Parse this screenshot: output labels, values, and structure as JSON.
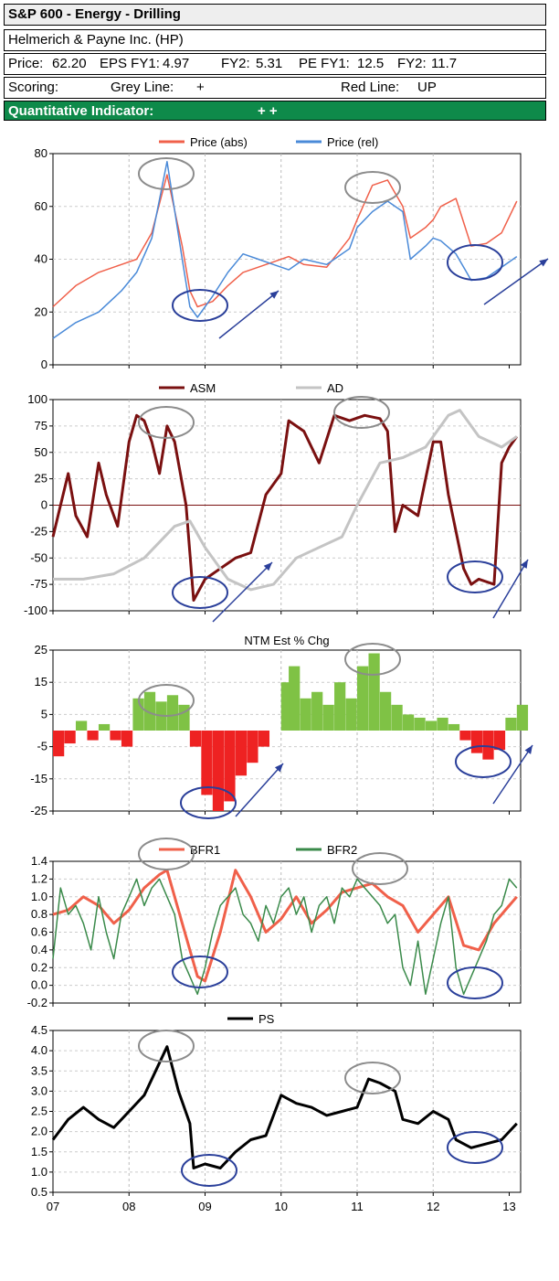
{
  "header": {
    "title": "S&P 600 - Energy - Drilling",
    "company": "Helmerich & Payne Inc. (HP)",
    "price_label": "Price:",
    "price": "62.20",
    "eps_label": "EPS FY1:",
    "eps_fy1": "4.97",
    "eps_fy2_label": "FY2:",
    "eps_fy2": "5.31",
    "pe_label": "PE FY1:",
    "pe_fy1": "12.5",
    "pe_fy2_label": "FY2:",
    "pe_fy2": "11.7",
    "scoring_label": "Scoring:",
    "grey_line_label": "Grey Line:",
    "grey_line_value": "+",
    "red_line_label": "Red Line:",
    "red_line_value": "UP",
    "quant_label": "Quantitative Indicator:",
    "quant_value": "+ +"
  },
  "colors": {
    "red": "#f0604a",
    "blue": "#4a8ad8",
    "darkred": "#7a1010",
    "grey": "#c4c4c4",
    "green": "#7fc245",
    "barred": "#ee2222",
    "bfr2": "#3a8a4a",
    "ps": "#000000",
    "annot_grey": "#8c8c8c",
    "annot_blue": "#2a3f9a",
    "header_green": "#0e8a4a"
  },
  "chart_data": [
    {
      "type": "line",
      "legend": [
        "Price (abs)",
        "Price (rel)"
      ],
      "ylim": [
        0,
        80
      ],
      "yticks": [
        "0",
        "20",
        "40",
        "60",
        "80"
      ],
      "xticks": [
        "07",
        "08",
        "09",
        "10",
        "11",
        "12",
        "13"
      ],
      "series": [
        {
          "name": "Price (abs)",
          "color": "red",
          "x": [
            2007.0,
            2007.3,
            2007.6,
            2007.9,
            2008.1,
            2008.3,
            2008.5,
            2008.7,
            2008.8,
            2008.9,
            2009.1,
            2009.3,
            2009.5,
            2009.7,
            2009.9,
            2010.1,
            2010.3,
            2010.6,
            2010.9,
            2011.0,
            2011.2,
            2011.4,
            2011.6,
            2011.7,
            2011.9,
            2012.0,
            2012.1,
            2012.3,
            2012.5,
            2012.7,
            2012.9,
            2013.1
          ],
          "y": [
            22,
            30,
            35,
            38,
            40,
            50,
            72,
            45,
            28,
            22,
            24,
            30,
            35,
            37,
            39,
            41,
            38,
            37,
            48,
            55,
            68,
            70,
            60,
            48,
            52,
            55,
            60,
            63,
            45,
            46,
            50,
            62
          ]
        },
        {
          "name": "Price (rel)",
          "color": "blue",
          "x": [
            2007.0,
            2007.3,
            2007.6,
            2007.9,
            2008.1,
            2008.3,
            2008.5,
            2008.7,
            2008.8,
            2008.9,
            2009.1,
            2009.3,
            2009.5,
            2009.7,
            2009.9,
            2010.1,
            2010.3,
            2010.6,
            2010.9,
            2011.0,
            2011.2,
            2011.4,
            2011.6,
            2011.7,
            2011.9,
            2012.0,
            2012.1,
            2012.3,
            2012.5,
            2012.7,
            2012.9,
            2013.1
          ],
          "y": [
            10,
            16,
            20,
            28,
            35,
            48,
            77,
            40,
            22,
            18,
            26,
            35,
            42,
            40,
            38,
            36,
            40,
            38,
            44,
            52,
            58,
            62,
            58,
            40,
            45,
            48,
            47,
            42,
            32,
            33,
            37,
            41
          ]
        }
      ]
    },
    {
      "type": "line",
      "legend": [
        "ASM",
        "AD"
      ],
      "ylim": [
        -100,
        100
      ],
      "yticks": [
        "-100",
        "-75",
        "-50",
        "-25",
        "0",
        "25",
        "50",
        "75",
        "100"
      ],
      "series": [
        {
          "name": "ASM",
          "color": "darkred",
          "x": [
            2007.0,
            2007.1,
            2007.2,
            2007.3,
            2007.45,
            2007.6,
            2007.7,
            2007.85,
            2008.0,
            2008.1,
            2008.2,
            2008.3,
            2008.4,
            2008.5,
            2008.6,
            2008.75,
            2008.85,
            2009.0,
            2009.2,
            2009.4,
            2009.6,
            2009.8,
            2010.0,
            2010.1,
            2010.3,
            2010.5,
            2010.7,
            2010.9,
            2011.1,
            2011.3,
            2011.4,
            2011.5,
            2011.6,
            2011.8,
            2012.0,
            2012.1,
            2012.2,
            2012.4,
            2012.5,
            2012.6,
            2012.8,
            2012.9,
            2013.0,
            2013.1
          ],
          "y": [
            -30,
            0,
            30,
            -10,
            -30,
            40,
            10,
            -20,
            60,
            85,
            80,
            60,
            30,
            75,
            60,
            0,
            -90,
            -70,
            -60,
            -50,
            -45,
            10,
            30,
            80,
            70,
            40,
            85,
            80,
            85,
            82,
            70,
            -25,
            0,
            -10,
            60,
            60,
            10,
            -60,
            -75,
            -70,
            -75,
            40,
            55,
            65
          ]
        },
        {
          "name": "AD",
          "color": "grey",
          "x": [
            2007.0,
            2007.4,
            2007.8,
            2008.2,
            2008.6,
            2008.8,
            2009.0,
            2009.3,
            2009.6,
            2009.9,
            2010.2,
            2010.5,
            2010.8,
            2011.0,
            2011.3,
            2011.6,
            2011.9,
            2012.2,
            2012.35,
            2012.6,
            2012.9,
            2013.1
          ],
          "y": [
            -70,
            -70,
            -65,
            -50,
            -20,
            -15,
            -40,
            -70,
            -80,
            -75,
            -50,
            -40,
            -30,
            0,
            40,
            45,
            55,
            85,
            90,
            65,
            55,
            65
          ]
        }
      ]
    },
    {
      "type": "bar",
      "title": "NTM Est % Chg",
      "ylim": [
        -25,
        25
      ],
      "yticks": [
        "-25",
        "-15",
        "-5",
        "5",
        "15",
        "25"
      ],
      "x": [
        2007.0,
        2007.15,
        2007.3,
        2007.45,
        2007.6,
        2007.75,
        2007.9,
        2008.05,
        2008.2,
        2008.35,
        2008.5,
        2008.65,
        2008.8,
        2008.95,
        2009.1,
        2009.25,
        2009.4,
        2009.55,
        2009.7,
        2009.85,
        2010.0,
        2010.1,
        2010.25,
        2010.4,
        2010.55,
        2010.7,
        2010.85,
        2011.0,
        2011.15,
        2011.3,
        2011.45,
        2011.6,
        2011.75,
        2011.9,
        2012.05,
        2012.2,
        2012.35,
        2012.5,
        2012.65,
        2012.8,
        2012.95,
        2013.1
      ],
      "values": [
        -8,
        -4,
        3,
        -3,
        2,
        -3,
        -5,
        10,
        12,
        9,
        11,
        8,
        -5,
        -20,
        -25,
        -22,
        -14,
        -10,
        -5,
        0,
        15,
        20,
        10,
        12,
        8,
        15,
        10,
        20,
        24,
        12,
        8,
        5,
        4,
        3,
        4,
        2,
        -3,
        -7,
        -9,
        -6,
        4,
        8
      ]
    },
    {
      "type": "line",
      "legend": [
        "BFR1",
        "BFR2"
      ],
      "ylim": [
        -0.2,
        1.4
      ],
      "yticks": [
        "-0.2",
        "0.0",
        "0.2",
        "0.4",
        "0.6",
        "0.8",
        "1.0",
        "1.2",
        "1.4"
      ],
      "series": [
        {
          "name": "BFR1",
          "color": "red",
          "x": [
            2007.0,
            2007.2,
            2007.4,
            2007.6,
            2007.8,
            2008.0,
            2008.2,
            2008.4,
            2008.5,
            2008.7,
            2008.9,
            2009.0,
            2009.2,
            2009.4,
            2009.6,
            2009.8,
            2010.0,
            2010.2,
            2010.4,
            2010.6,
            2010.8,
            2011.0,
            2011.2,
            2011.4,
            2011.6,
            2011.8,
            2012.0,
            2012.2,
            2012.4,
            2012.6,
            2012.8,
            2013.0,
            2013.1
          ],
          "y": [
            0.8,
            0.85,
            1.0,
            0.9,
            0.7,
            0.85,
            1.1,
            1.25,
            1.3,
            0.7,
            0.1,
            0.05,
            0.6,
            1.3,
            1.0,
            0.6,
            0.75,
            1.0,
            0.7,
            0.85,
            1.05,
            1.1,
            1.15,
            1.0,
            0.9,
            0.6,
            0.8,
            1.0,
            0.45,
            0.4,
            0.7,
            0.9,
            1.0
          ]
        },
        {
          "name": "BFR2",
          "color": "bfr2",
          "x": [
            2007.0,
            2007.1,
            2007.2,
            2007.3,
            2007.4,
            2007.5,
            2007.6,
            2007.7,
            2007.8,
            2007.9,
            2008.0,
            2008.1,
            2008.2,
            2008.3,
            2008.4,
            2008.5,
            2008.6,
            2008.7,
            2008.8,
            2008.9,
            2009.0,
            2009.1,
            2009.2,
            2009.3,
            2009.4,
            2009.5,
            2009.6,
            2009.7,
            2009.8,
            2009.9,
            2010.0,
            2010.1,
            2010.2,
            2010.3,
            2010.4,
            2010.5,
            2010.6,
            2010.7,
            2010.8,
            2010.9,
            2011.0,
            2011.1,
            2011.2,
            2011.3,
            2011.4,
            2011.5,
            2011.6,
            2011.7,
            2011.8,
            2011.9,
            2012.0,
            2012.1,
            2012.2,
            2012.3,
            2012.4,
            2012.5,
            2012.6,
            2012.7,
            2012.8,
            2012.9,
            2013.0,
            2013.1
          ],
          "y": [
            0.3,
            1.1,
            0.8,
            0.9,
            0.7,
            0.4,
            1.0,
            0.6,
            0.3,
            0.8,
            1.0,
            1.2,
            0.9,
            1.1,
            1.2,
            1.0,
            0.8,
            0.3,
            0.1,
            -0.1,
            0.2,
            0.6,
            0.9,
            1.0,
            1.1,
            0.8,
            0.7,
            0.5,
            0.9,
            0.7,
            1.0,
            1.1,
            0.8,
            1.0,
            0.6,
            0.9,
            1.0,
            0.7,
            1.1,
            1.0,
            1.2,
            1.1,
            1.0,
            0.9,
            0.7,
            0.8,
            0.2,
            0.0,
            0.5,
            -0.1,
            0.3,
            0.7,
            1.0,
            0.2,
            -0.1,
            0.1,
            0.3,
            0.5,
            0.8,
            0.9,
            1.2,
            1.1
          ]
        }
      ]
    },
    {
      "type": "line",
      "legend": [
        "PS"
      ],
      "ylim": [
        0.5,
        4.5
      ],
      "yticks": [
        "0.5",
        "1.0",
        "1.5",
        "2.0",
        "2.5",
        "3.0",
        "3.5",
        "4.0",
        "4.5"
      ],
      "xticks": [
        "07",
        "08",
        "09",
        "10",
        "11",
        "12",
        "13"
      ],
      "series": [
        {
          "name": "PS",
          "color": "ps",
          "x": [
            2007.0,
            2007.2,
            2007.4,
            2007.6,
            2007.8,
            2008.0,
            2008.2,
            2008.35,
            2008.5,
            2008.65,
            2008.8,
            2008.85,
            2009.0,
            2009.2,
            2009.4,
            2009.6,
            2009.8,
            2010.0,
            2010.2,
            2010.4,
            2010.6,
            2010.8,
            2011.0,
            2011.15,
            2011.3,
            2011.5,
            2011.6,
            2011.8,
            2012.0,
            2012.2,
            2012.3,
            2012.5,
            2012.7,
            2012.9,
            2013.0,
            2013.1
          ],
          "y": [
            1.8,
            2.3,
            2.6,
            2.3,
            2.1,
            2.5,
            2.9,
            3.5,
            4.1,
            3.0,
            2.2,
            1.1,
            1.2,
            1.1,
            1.5,
            1.8,
            1.9,
            2.9,
            2.7,
            2.6,
            2.4,
            2.5,
            2.6,
            3.3,
            3.2,
            3.0,
            2.3,
            2.2,
            2.5,
            2.3,
            1.8,
            1.6,
            1.7,
            1.8,
            2.0,
            2.2
          ]
        }
      ]
    }
  ]
}
